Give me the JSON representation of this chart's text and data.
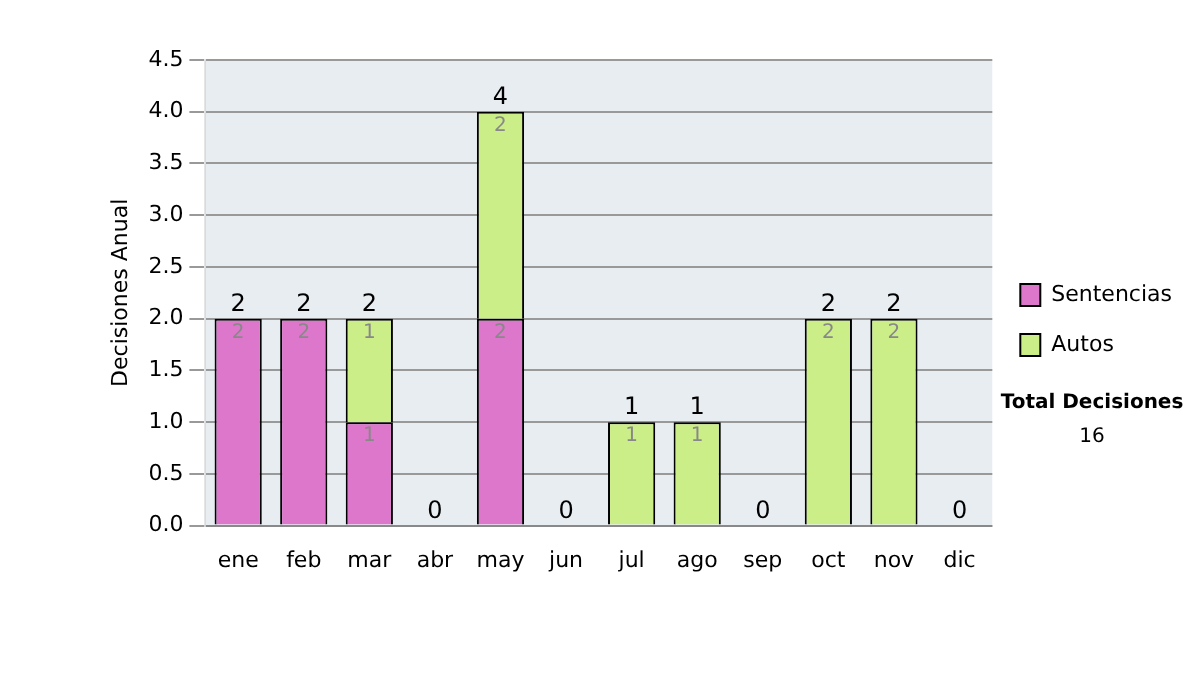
{
  "chart_data": {
    "type": "bar",
    "stacked": true,
    "ylabel": "Decisiones Anual",
    "categories": [
      "ene",
      "feb",
      "mar",
      "abr",
      "may",
      "jun",
      "jul",
      "ago",
      "sep",
      "oct",
      "nov",
      "dic"
    ],
    "series": [
      {
        "name": "Sentencias",
        "color": "#dd77cc",
        "values": [
          2,
          2,
          1,
          0,
          2,
          0,
          0,
          0,
          0,
          0,
          0,
          0
        ],
        "value_labels": [
          "2",
          "2",
          "1",
          null,
          "2",
          null,
          null,
          null,
          null,
          null,
          null,
          null
        ]
      },
      {
        "name": "Autos",
        "color": "#ccee88",
        "values": [
          0,
          0,
          1,
          0,
          2,
          0,
          1,
          1,
          0,
          2,
          2,
          0
        ],
        "value_labels": [
          null,
          null,
          "1",
          null,
          "2",
          null,
          "1",
          "1",
          null,
          "2",
          "2",
          null
        ]
      }
    ],
    "totals": [
      "2",
      "2",
      "2",
      "0",
      "4",
      "0",
      "1",
      "1",
      "0",
      "2",
      "2",
      "0"
    ],
    "ylim": [
      0,
      4.5
    ],
    "yticks": [
      {
        "value": 0,
        "label": "0.0"
      },
      {
        "value": 0.5,
        "label": "0.5"
      },
      {
        "value": 1,
        "label": "1.0"
      },
      {
        "value": 1.5,
        "label": "1.5"
      },
      {
        "value": 2,
        "label": "2.0"
      },
      {
        "value": 2.5,
        "label": "2.5"
      },
      {
        "value": 3,
        "label": "3.0"
      },
      {
        "value": 3.5,
        "label": "3.5"
      },
      {
        "value": 4,
        "label": "4.0"
      },
      {
        "value": 4.5,
        "label": "4.5"
      }
    ],
    "grid": "y",
    "legend": "right",
    "annotations": [
      "Total Decisiones",
      "16"
    ]
  }
}
